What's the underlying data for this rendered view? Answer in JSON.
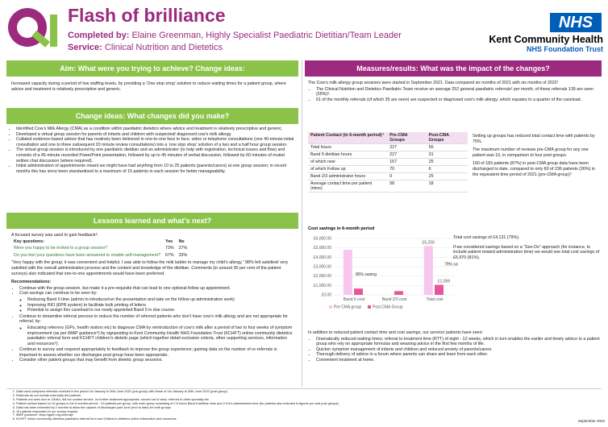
{
  "header": {
    "title": "Flash of brilliance",
    "completed_label": "Completed by:",
    "completed_by": "Elaine Greenman, Highly Specialist Paediatric Dietitian/Team Leader",
    "service_label": "Service:",
    "service": "Clinical Nutrition and Dietetics",
    "nhs": "NHS",
    "org": "Kent Community Health",
    "trust": "NHS Foundation Trust"
  },
  "aim": {
    "heading": "Aim: What were you trying to achieve? Change ideas:",
    "text": "Increased capacity during a period of low staffing levels, by providing a ‘One stop shop’ solution to reduce waiting times for a patient group, where advice and treatment is relatively prescriptive and generic."
  },
  "changes": {
    "heading": "Change ideas: What changes did you make?",
    "items": [
      "Identified Cow’s Milk Allergy (CMA) as a condition within paediatric dietetics where advice and treatment is relatively prescriptive and generic.",
      "Developed a virtual group session for parents of infants and children with suspected/ diagnosed cow’s milk allergy.",
      "Collated evidence-based advice that has routinely been delivered in one-to-one face to face, video or telephone consultations (one 40-minute initial consultation and one to three subsequent 20 minute review consultations) into a ‘one stop shop’ solution of a two and a half hour group session.",
      "The virtual group session is introduced by one paediatric dietitian and an administrator (to help with registration, technical issues and flow) and consists of a 45-minute recorded PowerPoint presentation, followed by up to 45 minutes of verbal discussion, followed by 60 minutes of muted written chat discussion (where required).",
      "Initial administration of appointments meant we might have had anything from 10 to 25 patients (parents/carers) at one group session; in recent months this has since been standardised to a maximum of 15 patients in each session for better manageability."
    ]
  },
  "lessons": {
    "heading": "Lessons learned and what’s next?",
    "intro": "A focused survey was used to gain feedback⁸.",
    "survey": {
      "head": [
        "Key questions:",
        "Yes",
        "No"
      ],
      "rows": [
        [
          "Were you happy to be invited to a group session?",
          "73%",
          "27%"
        ],
        [
          "Do you feel your questions have been answered to enable self-management?",
          "67%",
          "33%"
        ]
      ]
    },
    "quote": "“Very happy with the group, it was convenient and helpful. I was able to follow the milk ladder to manage my child’s allergy.” 88% felt satisfied/ very satisfied with the overall administration process and the content and knowledge of the dietitian. Comments (in around 30 per cent of the patient surveys) also indicated that one-to-one appointments would have been preferred.",
    "rec_heading": "Recommendations:",
    "recs": [
      {
        "text": "Continue with the group session, but make it a pre-requisite that can lead to one optional follow up appointment.",
        "sub": []
      },
      {
        "text": "Cost savings can continue to be seen by:",
        "sub": [
          "Reducing Band 6 time (admin to introduce/run the presentation and take on the follow up administration work)",
          "Improving RIO (EPR system) to facilitate bulk printing of letters",
          "Potential to assign this caseload to our newly appointed Band 5 in due course."
        ]
      },
      {
        "text": "Continue to streamline referral process to reduce the number of referred patients who don’t have cow’s milk allergy and are not appropriate for referral, by:",
        "sub": [
          "Educating referrers (GPs, health visitors etc) to diagnose CMA by reintroduction of cow’s milk after a period of two to four weeks of symptom improvement (as per iMAP guidance⁹) by signposting to Kent Community Health NHS Foundation Trust (KCHFT) online community dietetics paediatric referral form and KCHFT children’s dietetic page (which together detail exclusion criteria, other supporting services, information and resources⁹)."
        ]
      },
      {
        "text": "Continue to survey and respond appropriately to feedback to improve the group experience; gaining data on the number of re-referrals is important to assess whether our discharges post group have been appropriate.",
        "sub": []
      },
      {
        "text": "Consider other patient groups that may benefit from dietetic group sessions.",
        "sub": []
      }
    ]
  },
  "measures": {
    "heading": "Measures/results: What was the impact of the changes?",
    "intro": "The Cow’s milk allergy group sessions were started in September 2021. Data compared six months of 2021 with six months of 2022¹",
    "items": [
      "The Clinical Nutrition and Dietetics Paediatric Team receive on average 252 general paediatric referrals² per month, of these referrals 139 are seen (55%)³.",
      "61 of the monthly referrals (of which 35 are seen) are suspected or diagnosed cow’s milk allergy; which equates to a quarter of the caseload."
    ],
    "table": {
      "head": [
        "Patient Contact (in 6-month period)⁴",
        "Pre-CMA Groups",
        "Post-CMA Groups"
      ],
      "rows": [
        [
          "Total hours",
          "227",
          "56"
        ],
        [
          "Band 6 dietitian hours",
          "227",
          "31"
        ],
        [
          "of which new",
          "157",
          "25"
        ],
        [
          "of which Follow up",
          "70",
          "6"
        ],
        [
          "Band 2/3 administrator hours",
          "0",
          "25"
        ],
        [
          "Average contact time per patient (mins)",
          "58",
          "18"
        ]
      ]
    },
    "side": [
      "Setting up groups has reduced total contact time with patients by 75%.",
      "The maximum number of reviews pre-CMA group for any one patient was 10, in comparison to four post groups.",
      "160 of 183 patients (87%) in post-CMA group data have been discharged to date, compared to only 60 of 236 patients (26%) in the equivalent time period of 2021 (pre-CMA group)⁵"
    ],
    "chart_side": [
      "Total cost savings of £4,131 (79%).",
      "If we considered savings based on a “See-Do” approach (for instance, to include patient related administration time) we would see total cost savings of £6,970 (81%)."
    ],
    "outro": "In addition to reduced patient contact time and cost savings, our service/ patients have seen:",
    "outro_items": [
      "Dramatically reduced waiting times; referral to treatment time (RTT) of eight - 12 weeks, which in turn enables the earlier and timely advice to a patient group who rely on appropriate formulas and weaning advice in the first few months of life.",
      "Quicker symptom management of infants and children and reduced anxiety of parents/carers.",
      "Thorough delivery of advice in a forum where parents can share and learn from each other.",
      "Convenient treatment at home."
    ]
  },
  "chart_data": {
    "type": "bar",
    "title": "Cost savings in 6-month period",
    "categories": [
      "Band 6 cost",
      "Band 2/3 cost",
      "Total cost"
    ],
    "series": [
      {
        "name": "Pre CMA group",
        "color": "#f7c6ef",
        "values": [
          4800,
          0,
          5200
        ],
        "value_labels": [
          null,
          null,
          "£5,200"
        ]
      },
      {
        "name": "Post CMA Group",
        "color": "#e8569a",
        "values": [
          670,
          400,
          1069
        ],
        "value_labels": [
          null,
          null,
          "£1,069"
        ]
      }
    ],
    "annotations": [
      "86% saving",
      "79% saving"
    ],
    "ylim": [
      0,
      6000
    ],
    "yticks": [
      {
        "value": 0,
        "label": "£0.00"
      },
      {
        "value": 1000,
        "label": "£1,000.00"
      },
      {
        "value": 2000,
        "label": "£2,000.00"
      },
      {
        "value": 3000,
        "label": "£3,000.00"
      },
      {
        "value": 4000,
        "label": "£4,000.00"
      },
      {
        "value": 5000,
        "label": "£5,000.00"
      },
      {
        "value": 6000,
        "label": "£6,000.00"
      }
    ],
    "legend": "bottom"
  },
  "footer": {
    "notes": [
      "Data used compares referrals received in the period 1st January to 30th June 2021 (pre-group) with those of 1st January to 30th June 2022 (post group)",
      "Referrals do not include externally fed patients",
      "Patients not seen due to; DNA’s, did not contact service, no further treatment appropriate, moved out of area, referred to other specialty etc.",
      "Patient contact based on 10 groups in the 6 months period; ~19 patients per group, with each group consisting of 2.5 hours Band 6 dietitian time and 2.5 hrs administrator time (for patients also included in figures pre and post groups)",
      "Data has been extended by 2 months to allow the capture of discharges post June (end to date) for both groups",
      "15 patients responded to our survey request",
      "iMAP guidance: https://gpifn.org.uk/imap/",
      "KCHFT online community dietetics paediatric referral form and Children’s dietetics online information and resources"
    ],
    "date": "September 2022"
  }
}
